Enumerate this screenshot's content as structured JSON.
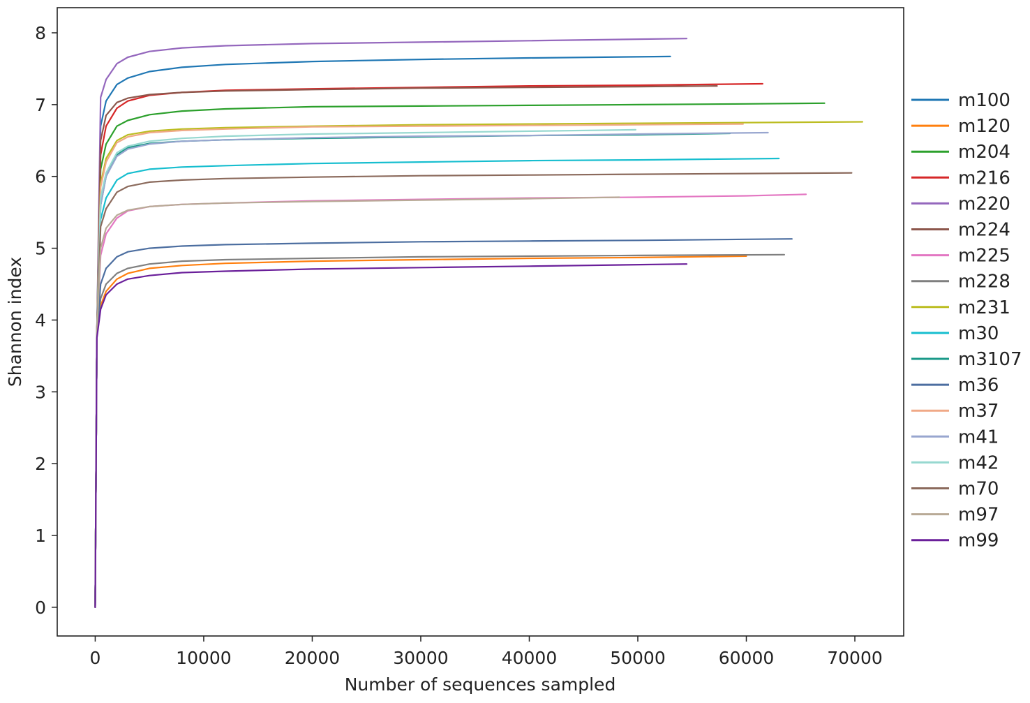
{
  "chart_data": {
    "type": "line",
    "title": "",
    "xlabel": "Number of sequences sampled",
    "ylabel": "Shannon index",
    "xlim": [
      -3500,
      74500
    ],
    "ylim": [
      -0.4,
      8.35
    ],
    "xticks": [
      0,
      10000,
      20000,
      30000,
      40000,
      50000,
      60000,
      70000
    ],
    "yticks": [
      0,
      1,
      2,
      3,
      4,
      5,
      6,
      7,
      8
    ],
    "xtick_labels": [
      "0",
      "10000",
      "20000",
      "30000",
      "40000",
      "50000",
      "60000",
      "70000"
    ],
    "ytick_labels": [
      "0",
      "1",
      "2",
      "3",
      "4",
      "5",
      "6",
      "7",
      "8"
    ],
    "grid": false,
    "legend_position": "outside-right",
    "series": [
      {
        "name": "m100",
        "color": "#1f77b4",
        "x": [
          0,
          150,
          500,
          1000,
          2000,
          3000,
          5000,
          8000,
          12000,
          20000,
          30000,
          40000,
          53000
        ],
        "y": [
          0,
          3.8,
          6.7,
          7.05,
          7.28,
          7.37,
          7.46,
          7.52,
          7.56,
          7.6,
          7.63,
          7.65,
          7.67
        ]
      },
      {
        "name": "m120",
        "color": "#ff7f0e",
        "x": [
          0,
          150,
          500,
          1000,
          2000,
          3000,
          5000,
          8000,
          12000,
          20000,
          30000,
          40000,
          50000,
          60000
        ],
        "y": [
          0,
          3.8,
          4.2,
          4.4,
          4.57,
          4.65,
          4.72,
          4.76,
          4.79,
          4.82,
          4.84,
          4.86,
          4.87,
          4.89
        ]
      },
      {
        "name": "m204",
        "color": "#2ca02c",
        "x": [
          0,
          150,
          500,
          1000,
          2000,
          3000,
          5000,
          8000,
          12000,
          20000,
          30000,
          40000,
          50000,
          60000,
          67200
        ],
        "y": [
          0,
          3.8,
          6.1,
          6.45,
          6.7,
          6.78,
          6.86,
          6.91,
          6.94,
          6.97,
          6.98,
          6.99,
          7.0,
          7.01,
          7.02
        ]
      },
      {
        "name": "m216",
        "color": "#d62728",
        "x": [
          0,
          150,
          500,
          1000,
          2000,
          3000,
          5000,
          8000,
          12000,
          20000,
          30000,
          40000,
          50000,
          61500
        ],
        "y": [
          0,
          3.8,
          6.3,
          6.7,
          6.95,
          7.05,
          7.13,
          7.17,
          7.2,
          7.22,
          7.24,
          7.26,
          7.27,
          7.29
        ]
      },
      {
        "name": "m220",
        "color": "#9467bd",
        "x": [
          0,
          150,
          500,
          1000,
          2000,
          3000,
          5000,
          8000,
          12000,
          20000,
          30000,
          40000,
          54500
        ],
        "y": [
          0,
          3.8,
          7.1,
          7.35,
          7.57,
          7.66,
          7.74,
          7.79,
          7.82,
          7.85,
          7.87,
          7.89,
          7.92
        ]
      },
      {
        "name": "m224",
        "color": "#8c564b",
        "x": [
          0,
          150,
          500,
          1000,
          2000,
          3000,
          5000,
          8000,
          12000,
          20000,
          30000,
          40000,
          50000,
          57300
        ],
        "y": [
          0,
          3.8,
          6.5,
          6.85,
          7.03,
          7.09,
          7.14,
          7.17,
          7.19,
          7.21,
          7.23,
          7.24,
          7.25,
          7.26
        ]
      },
      {
        "name": "m225",
        "color": "#e377c2",
        "x": [
          0,
          150,
          500,
          1000,
          2000,
          3000,
          5000,
          8000,
          12000,
          20000,
          30000,
          40000,
          50000,
          60000,
          65500
        ],
        "y": [
          0,
          3.8,
          4.9,
          5.2,
          5.42,
          5.52,
          5.58,
          5.61,
          5.63,
          5.66,
          5.68,
          5.7,
          5.71,
          5.73,
          5.75
        ]
      },
      {
        "name": "m228",
        "color": "#7f7f7f",
        "x": [
          0,
          150,
          500,
          1000,
          2000,
          3000,
          5000,
          8000,
          12000,
          20000,
          30000,
          40000,
          50000,
          63500
        ],
        "y": [
          0,
          3.8,
          4.3,
          4.5,
          4.65,
          4.72,
          4.78,
          4.82,
          4.84,
          4.86,
          4.88,
          4.89,
          4.9,
          4.91
        ]
      },
      {
        "name": "m231",
        "color": "#bcbd22",
        "x": [
          0,
          150,
          500,
          1000,
          2000,
          3000,
          5000,
          8000,
          12000,
          20000,
          30000,
          40000,
          50000,
          60000,
          70700
        ],
        "y": [
          0,
          3.8,
          5.9,
          6.25,
          6.5,
          6.58,
          6.63,
          6.66,
          6.68,
          6.7,
          6.72,
          6.73,
          6.74,
          6.75,
          6.76
        ]
      },
      {
        "name": "m30",
        "color": "#17becf",
        "x": [
          0,
          150,
          500,
          1000,
          2000,
          3000,
          5000,
          8000,
          12000,
          20000,
          30000,
          40000,
          50000,
          63000
        ],
        "y": [
          0,
          3.8,
          5.4,
          5.7,
          5.95,
          6.04,
          6.1,
          6.13,
          6.15,
          6.18,
          6.2,
          6.22,
          6.23,
          6.25
        ]
      },
      {
        "name": "m3107",
        "color": "#1a9988",
        "x": [
          0,
          150,
          500,
          1000,
          2000,
          3000,
          5000,
          8000,
          12000,
          20000,
          30000,
          40000,
          50000,
          58500
        ],
        "y": [
          0,
          3.8,
          5.6,
          6.0,
          6.3,
          6.4,
          6.46,
          6.49,
          6.51,
          6.53,
          6.55,
          6.57,
          6.58,
          6.6
        ]
      },
      {
        "name": "m36",
        "color": "#4c6ea0",
        "x": [
          0,
          150,
          500,
          1000,
          2000,
          3000,
          5000,
          8000,
          12000,
          20000,
          30000,
          40000,
          50000,
          64200
        ],
        "y": [
          0,
          3.8,
          4.5,
          4.72,
          4.88,
          4.95,
          5.0,
          5.03,
          5.05,
          5.07,
          5.09,
          5.1,
          5.11,
          5.13
        ]
      },
      {
        "name": "m37",
        "color": "#f0a987",
        "x": [
          0,
          150,
          500,
          1000,
          2000,
          3000,
          5000,
          8000,
          12000,
          20000,
          30000,
          40000,
          50000,
          59700
        ],
        "y": [
          0,
          3.8,
          5.85,
          6.2,
          6.47,
          6.55,
          6.61,
          6.64,
          6.66,
          6.69,
          6.7,
          6.71,
          6.72,
          6.73
        ]
      },
      {
        "name": "m41",
        "color": "#98a6cf",
        "x": [
          0,
          150,
          500,
          1000,
          2000,
          3000,
          5000,
          8000,
          12000,
          20000,
          30000,
          40000,
          50000,
          62000
        ],
        "y": [
          0,
          3.8,
          5.6,
          6.0,
          6.28,
          6.38,
          6.45,
          6.49,
          6.51,
          6.54,
          6.56,
          6.57,
          6.59,
          6.61
        ]
      },
      {
        "name": "m42",
        "color": "#97d8d0",
        "x": [
          0,
          150,
          500,
          1000,
          2000,
          3000,
          5000,
          8000,
          12000,
          20000,
          30000,
          40000,
          49800
        ],
        "y": [
          0,
          3.8,
          5.7,
          6.05,
          6.33,
          6.42,
          6.49,
          6.53,
          6.56,
          6.59,
          6.61,
          6.63,
          6.65
        ]
      },
      {
        "name": "m70",
        "color": "#8b6a5c",
        "x": [
          0,
          150,
          500,
          1000,
          2000,
          3000,
          5000,
          8000,
          12000,
          20000,
          30000,
          40000,
          50000,
          60000,
          69700
        ],
        "y": [
          0,
          3.8,
          5.3,
          5.55,
          5.78,
          5.86,
          5.92,
          5.95,
          5.97,
          5.99,
          6.01,
          6.02,
          6.03,
          6.04,
          6.05
        ]
      },
      {
        "name": "m97",
        "color": "#b8aa96",
        "x": [
          0,
          150,
          500,
          1000,
          2000,
          3000,
          5000,
          8000,
          12000,
          20000,
          30000,
          40000,
          48300
        ],
        "y": [
          0,
          3.8,
          5.0,
          5.28,
          5.46,
          5.53,
          5.58,
          5.61,
          5.63,
          5.65,
          5.67,
          5.69,
          5.71
        ]
      },
      {
        "name": "m99",
        "color": "#6a1f9a",
        "x": [
          0,
          150,
          500,
          1000,
          2000,
          3000,
          5000,
          8000,
          12000,
          20000,
          30000,
          40000,
          54500
        ],
        "y": [
          0,
          3.75,
          4.15,
          4.35,
          4.5,
          4.57,
          4.62,
          4.66,
          4.68,
          4.71,
          4.73,
          4.75,
          4.78
        ]
      }
    ]
  }
}
